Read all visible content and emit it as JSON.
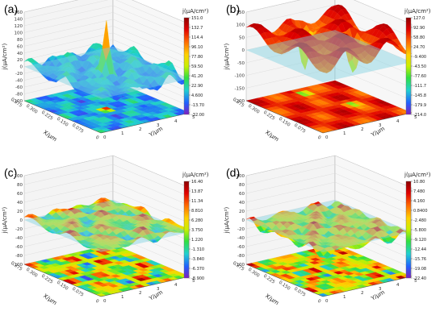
{
  "chart_data": [
    {
      "type": "surface3d",
      "panel_label": "(a)",
      "zlabel": "j(μA/cm²)",
      "xlabel": "X/μm",
      "ylabel": "Y/μm",
      "z_ticks": [
        "160",
        "140",
        "120",
        "100",
        "80",
        "60",
        "40",
        "20",
        "0",
        "-20",
        "-40",
        "-60",
        "-80",
        "-100"
      ],
      "x_ticks": [
        "0.375",
        "0.300",
        "0.225",
        "0.150",
        "0.075",
        "0"
      ],
      "y_ticks": [
        "0",
        "1",
        "2",
        "3",
        "4",
        "5"
      ],
      "zlim": [
        -100,
        160
      ],
      "colorbar": {
        "title": "j(μA/cm²)",
        "ticks": [
          "151.0",
          "132.7",
          "114.4",
          "96.10",
          "77.80",
          "59.50",
          "41.20",
          "22.90",
          "4.600",
          "-13.70",
          "-32.00"
        ],
        "range": [
          -32.0,
          151.0
        ]
      },
      "features": {
        "peak": 151,
        "floor": -32
      }
    },
    {
      "type": "surface3d",
      "panel_label": "(b)",
      "zlabel": "j(μA/cm²)",
      "xlabel": "X/μm",
      "ylabel": "Y/μm",
      "z_ticks": [
        "150",
        "100",
        "50",
        "0",
        "-50",
        "-100",
        "-150",
        "-200"
      ],
      "x_ticks": [
        "0.375",
        "0.300",
        "0.225",
        "0.150",
        "0.075",
        "0"
      ],
      "y_ticks": [
        "0",
        "1",
        "2",
        "3",
        "4",
        "5"
      ],
      "zlim": [
        -200,
        150
      ],
      "colorbar": {
        "title": "j(μA/cm²)",
        "ticks": [
          "127.0",
          "92.90",
          "58.80",
          "24.70",
          "-9.400",
          "-43.50",
          "-77.60",
          "-111.7",
          "-145.8",
          "-179.9",
          "-214.0"
        ],
        "range": [
          -214.0,
          127.0
        ]
      },
      "features": {
        "peak": 127,
        "floor": -214
      }
    },
    {
      "type": "surface3d",
      "panel_label": "(c)",
      "zlabel": "j(μA/cm²)",
      "xlabel": "X/μm",
      "ylabel": "Y/μm",
      "z_ticks": [
        "100",
        "80",
        "60",
        "40",
        "20",
        "0",
        "-20",
        "-40",
        "-60",
        "-80",
        "-100"
      ],
      "x_ticks": [
        "0.375",
        "0.300",
        "0.225",
        "0.150",
        "0.075",
        "0"
      ],
      "y_ticks": [
        "0",
        "1",
        "2",
        "3",
        "4",
        "5"
      ],
      "zlim": [
        -100,
        100
      ],
      "colorbar": {
        "title": "j(μA/cm²)",
        "ticks": [
          "16.40",
          "13.87",
          "11.34",
          "8.810",
          "6.280",
          "3.750",
          "1.220",
          "-1.310",
          "-3.840",
          "-6.370",
          "-8.900"
        ],
        "range": [
          -8.9,
          16.4
        ]
      },
      "features": {
        "peak": 16.4,
        "floor": -8.9
      }
    },
    {
      "type": "surface3d",
      "panel_label": "(d)",
      "zlabel": "j(μA/cm²)",
      "xlabel": "X/μm",
      "ylabel": "Y/μm",
      "z_ticks": [
        "100",
        "80",
        "60",
        "40",
        "20",
        "0",
        "-20",
        "-40",
        "-60",
        "-80",
        "-100"
      ],
      "x_ticks": [
        "0.375",
        "0.300",
        "0.225",
        "0.150",
        "0.075",
        "0"
      ],
      "y_ticks": [
        "0",
        "1",
        "2",
        "3",
        "4",
        "5"
      ],
      "zlim": [
        -100,
        100
      ],
      "colorbar": {
        "title": "j(μA/cm²)",
        "ticks": [
          "10.80",
          "7.480",
          "4.160",
          "0.8400",
          "-2.480",
          "-5.800",
          "-9.120",
          "-12.44",
          "-15.76",
          "-19.08",
          "-22.40"
        ],
        "range": [
          -22.4,
          10.8
        ]
      },
      "features": {
        "peak": 10.8,
        "floor": -22.4
      }
    }
  ]
}
